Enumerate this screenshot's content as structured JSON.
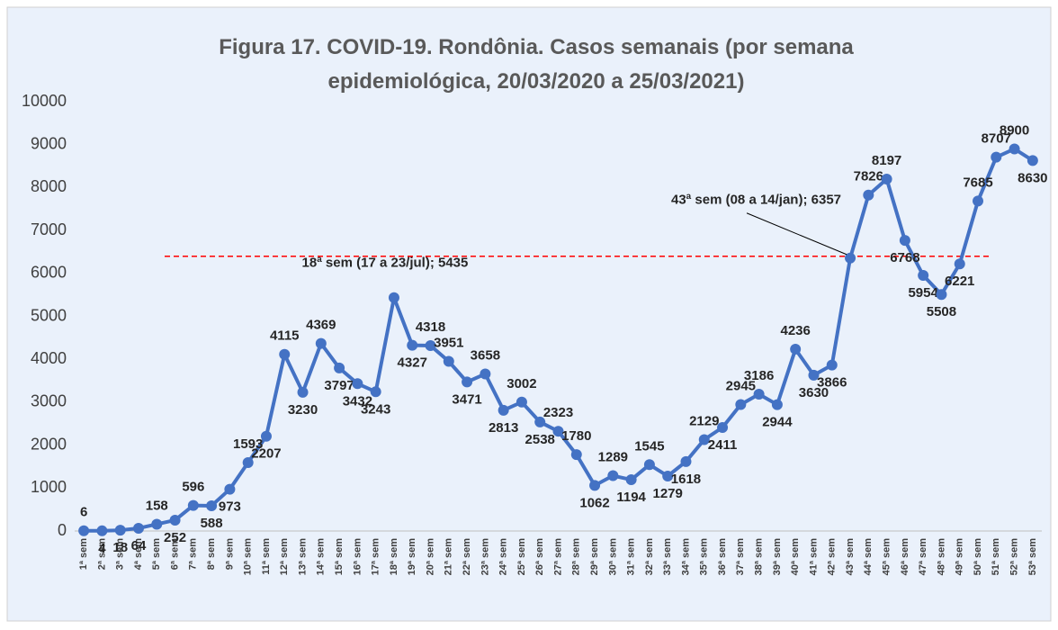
{
  "chart_data": {
    "type": "line",
    "title": "Figura 17. COVID-19. Rondônia. Casos semanais (por semana epidemiológica, 20/03/2020 a 25/03/2021)",
    "categories": [
      "1ª sem",
      "2ª sem",
      "3ª sem",
      "4ª sem",
      "5ª sem",
      "6ª sem",
      "7ª sem",
      "8ª sem",
      "9ª sem",
      "10ª sem",
      "11ª sem",
      "12ª sem",
      "13ª sem",
      "14ª sem",
      "15ª sem",
      "16ª sem",
      "17ª sem",
      "18ª sem",
      "19ª sem",
      "20ª sem",
      "21ª sem",
      "22ª sem",
      "23ª sem",
      "24ª sem",
      "25ª sem",
      "26ª sem",
      "27ª sem",
      "28ª sem",
      "29ª sem",
      "30ª sem",
      "31ª sem",
      "32ª sem",
      "33ª sem",
      "34ª sem",
      "35ª sem",
      "36ª sem",
      "37ª sem",
      "38ª sem",
      "39ª sem",
      "40ª sem",
      "41ª sem",
      "42ª sem",
      "43ª sem",
      "44ª sem",
      "45ª sem",
      "46ª sem",
      "47ª sem",
      "48ª sem",
      "49ª sem",
      "50ª sem",
      "51ª sem",
      "52ª sem",
      "53ª sem"
    ],
    "series": [
      {
        "name": "Casos semanais",
        "color": "#4472c4",
        "values": [
          6,
          4,
          18,
          64,
          158,
          252,
          596,
          588,
          973,
          1593,
          2207,
          4115,
          3230,
          4369,
          3797,
          3432,
          3243,
          5435,
          4327,
          4318,
          3951,
          3471,
          3658,
          2813,
          3002,
          2538,
          2323,
          1780,
          1062,
          1289,
          1194,
          1545,
          1279,
          1618,
          2129,
          2411,
          2945,
          3186,
          2944,
          4236,
          3630,
          3866,
          6357,
          7826,
          8197,
          6768,
          5954,
          5508,
          6221,
          7685,
          8707,
          8900,
          8630
        ]
      }
    ],
    "annotations": [
      {
        "text": "18ª sem (17 a 23/jul); 5435",
        "point": 17
      },
      {
        "text": "43ª sem (08 a 14/jan); 6357",
        "point": 42
      }
    ],
    "reference_line": {
      "value": 6400,
      "color": "#ff0000"
    },
    "ylim": [
      0,
      10000
    ],
    "yticks": [
      0,
      1000,
      2000,
      3000,
      4000,
      5000,
      6000,
      7000,
      8000,
      9000,
      10000
    ],
    "grid": false
  }
}
